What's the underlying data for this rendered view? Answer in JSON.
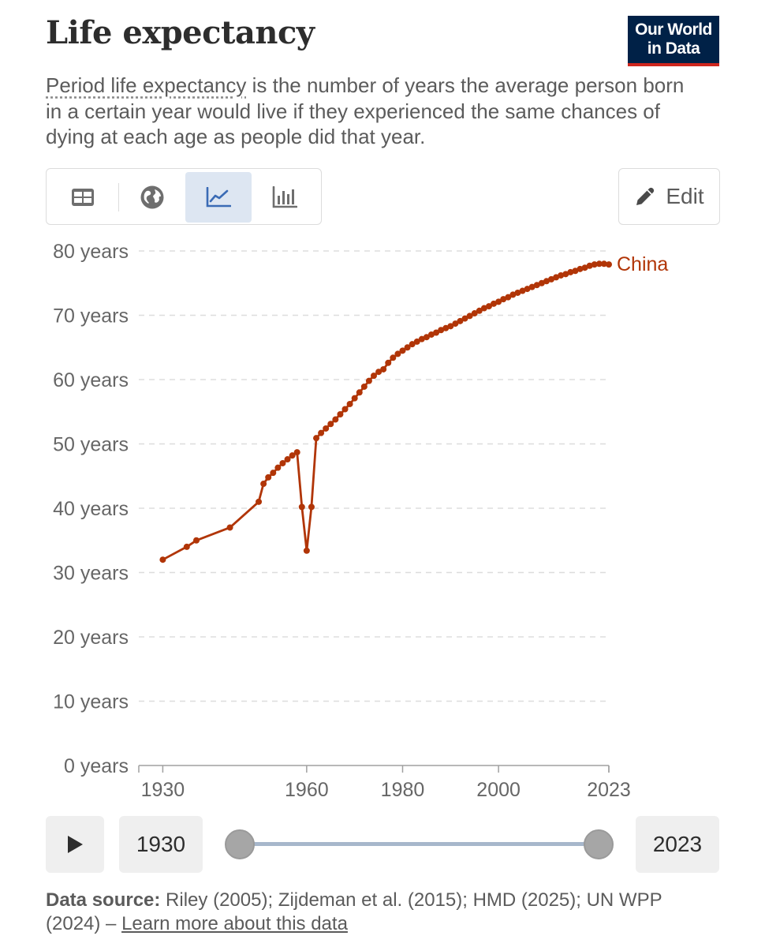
{
  "header": {
    "title": "Life expectancy",
    "logo_line1": "Our World",
    "logo_line2": "in Data",
    "subtitle_term": "Period life expectancy",
    "subtitle_rest": " is the number of years the average person born in a certain year would live if they experienced the same chances of dying at each age as people did that year."
  },
  "toolbar": {
    "icons": [
      "table-icon",
      "globe-icon",
      "line-chart-icon",
      "bar-chart-icon"
    ],
    "active": "line-chart-icon",
    "edit_label": "Edit"
  },
  "colors": {
    "series": "#b13507",
    "grid": "#dddddd",
    "axis_text": "#666666",
    "active_tab": "#dde6f2",
    "logo_bg": "#002147",
    "logo_bar": "#ce261e"
  },
  "chart_data": {
    "type": "line",
    "title": "Life expectancy",
    "ylabel": "",
    "xlabel": "",
    "xlim": [
      1925,
      2023
    ],
    "ylim": [
      0,
      80
    ],
    "y_ticks": [
      0,
      10,
      20,
      30,
      40,
      50,
      60,
      70,
      80
    ],
    "y_tick_labels": [
      "0 years",
      "10 years",
      "20 years",
      "30 years",
      "40 years",
      "50 years",
      "60 years",
      "70 years",
      "80 years"
    ],
    "x_ticks": [
      1930,
      1960,
      1980,
      2000,
      2023
    ],
    "x_tick_labels": [
      "1930",
      "1960",
      "1980",
      "2000",
      "2023"
    ],
    "grid": true,
    "series": [
      {
        "name": "China",
        "color": "#b13507",
        "x": [
          1930,
          1935,
          1937,
          1944,
          1950,
          1951,
          1952,
          1953,
          1954,
          1955,
          1956,
          1957,
          1958,
          1959,
          1960,
          1961,
          1962,
          1963,
          1964,
          1965,
          1966,
          1967,
          1968,
          1969,
          1970,
          1971,
          1972,
          1973,
          1974,
          1975,
          1976,
          1977,
          1978,
          1979,
          1980,
          1981,
          1982,
          1983,
          1984,
          1985,
          1986,
          1987,
          1988,
          1989,
          1990,
          1991,
          1992,
          1993,
          1994,
          1995,
          1996,
          1997,
          1998,
          1999,
          2000,
          2001,
          2002,
          2003,
          2004,
          2005,
          2006,
          2007,
          2008,
          2009,
          2010,
          2011,
          2012,
          2013,
          2014,
          2015,
          2016,
          2017,
          2018,
          2019,
          2020,
          2021,
          2022,
          2023
        ],
        "values": [
          32.0,
          34.0,
          35.0,
          37.0,
          41.0,
          43.8,
          44.8,
          45.5,
          46.3,
          47.0,
          47.6,
          48.2,
          48.7,
          40.2,
          33.4,
          40.2,
          50.9,
          51.7,
          52.4,
          53.1,
          53.8,
          54.6,
          55.4,
          56.2,
          57.1,
          58.0,
          58.9,
          59.8,
          60.6,
          61.2,
          61.6,
          62.6,
          63.4,
          64.0,
          64.5,
          65.0,
          65.5,
          65.9,
          66.3,
          66.6,
          67.0,
          67.3,
          67.7,
          68.0,
          68.3,
          68.7,
          69.1,
          69.5,
          69.9,
          70.3,
          70.7,
          71.1,
          71.4,
          71.8,
          72.1,
          72.5,
          72.8,
          73.2,
          73.5,
          73.8,
          74.1,
          74.4,
          74.7,
          75.0,
          75.3,
          75.6,
          75.9,
          76.2,
          76.4,
          76.7,
          76.9,
          77.2,
          77.4,
          77.7,
          77.9,
          78.0,
          78.0,
          77.9
        ]
      }
    ],
    "series_label": "China"
  },
  "timeline": {
    "start_year": "1930",
    "end_year": "2023",
    "start_fraction": 0,
    "end_fraction": 1
  },
  "footer": {
    "source_label": "Data source:",
    "source_text": " Riley (2005); Zijdeman et al. (2015); HMD (2025); UN WPP (2024) – ",
    "learn_more": "Learn more about this data"
  }
}
